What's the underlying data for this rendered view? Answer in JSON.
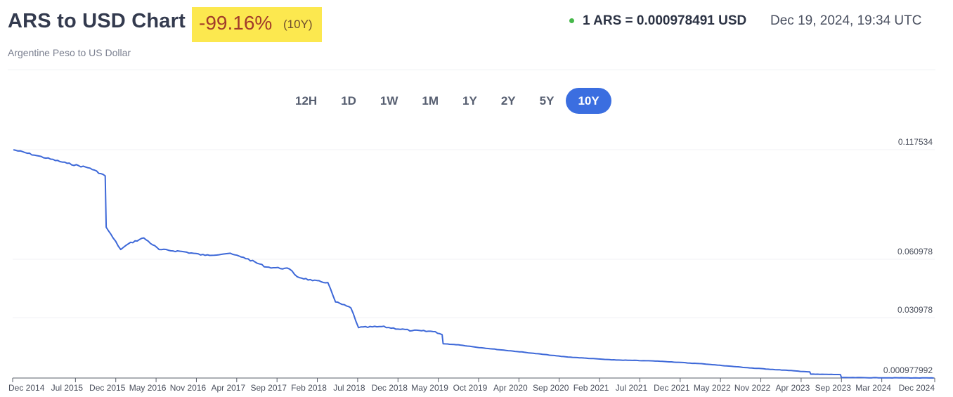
{
  "header": {
    "title": "ARS to USD Chart",
    "change_pct": "-99.16%",
    "change_period": "(10Y)",
    "subtitle": "Argentine Peso to US Dollar",
    "rate": "1 ARS = 0.000978491 USD",
    "rate_time": "Dec 19, 2024, 19:34 UTC",
    "status_color": "#46b84a"
  },
  "ranges": {
    "items": [
      "12H",
      "1D",
      "1W",
      "1M",
      "1Y",
      "2Y",
      "5Y",
      "10Y"
    ],
    "active": "10Y"
  },
  "chart_data": {
    "type": "line",
    "line_color": "#3d68d8",
    "y_ticks": [
      "0.117534",
      "0.060978",
      "0.030978",
      "0.000977992"
    ],
    "x_ticks": [
      "Dec 2014",
      "Jul 2015",
      "Dec 2015",
      "May 2016",
      "Nov 2016",
      "Apr 2017",
      "Sep 2017",
      "Feb 2018",
      "Jul 2018",
      "Dec 2018",
      "May 2019",
      "Oct 2019",
      "Apr 2020",
      "Sep 2020",
      "Feb 2021",
      "Jul 2021",
      "Dec 2021",
      "May 2022",
      "Nov 2022",
      "Apr 2023",
      "Sep 2023",
      "Mar 2024",
      "Dec 2024"
    ],
    "series": [
      {
        "x": [
          "2014-12",
          "2015-03",
          "2015-07",
          "2015-10",
          "2015-12-14",
          "2015-12-18",
          "2016-01",
          "2016-02",
          "2016-03",
          "2016-05",
          "2016-07",
          "2016-10",
          "2017-01",
          "2017-04",
          "2017-06",
          "2017-09",
          "2017-12",
          "2018-01",
          "2018-03",
          "2018-05",
          "2018-06",
          "2018-08",
          "2018-09",
          "2018-12",
          "2019-04",
          "2019-07",
          "2019-08-12",
          "2019-08-16",
          "2019-10",
          "2020-01",
          "2020-06",
          "2020-12",
          "2021-06",
          "2021-12",
          "2022-06",
          "2022-12",
          "2023-06",
          "2023-08-10",
          "2023-08-14",
          "2023-12-10",
          "2023-12-14",
          "2024-06",
          "2024-12"
        ],
        "y": [
          0.1175,
          0.1145,
          0.1105,
          0.108,
          0.104,
          0.0775,
          0.072,
          0.066,
          0.069,
          0.072,
          0.066,
          0.065,
          0.063,
          0.064,
          0.062,
          0.057,
          0.056,
          0.052,
          0.05,
          0.049,
          0.039,
          0.036,
          0.026,
          0.0265,
          0.0245,
          0.024,
          0.0225,
          0.018,
          0.0175,
          0.016,
          0.014,
          0.0115,
          0.01,
          0.0094,
          0.008,
          0.006,
          0.0045,
          0.004,
          0.0029,
          0.0027,
          0.0012,
          0.0011,
          0.00098
        ]
      }
    ]
  }
}
